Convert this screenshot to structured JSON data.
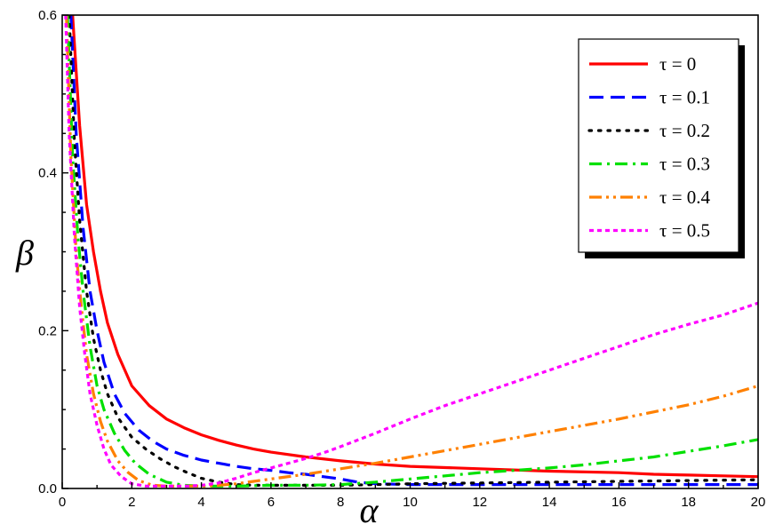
{
  "chart_data": {
    "type": "line",
    "xlabel": "α",
    "ylabel": "β",
    "xlim": [
      0,
      20
    ],
    "ylim": [
      0,
      0.6
    ],
    "xticks": [
      "0",
      "2",
      "4",
      "6",
      "8",
      "10",
      "12",
      "14",
      "16",
      "18",
      "20"
    ],
    "yticks": [
      "0.0",
      "0.2",
      "0.4",
      "0.6"
    ],
    "legend_position": "top-right",
    "grid": false,
    "series": [
      {
        "name": "τ = 0",
        "color": "#ff0000",
        "style": "solid",
        "x": [
          0.3,
          0.5,
          0.7,
          0.9,
          1.1,
          1.3,
          1.6,
          2.0,
          2.5,
          3,
          3.5,
          4,
          4.5,
          5,
          5.5,
          6,
          7,
          8,
          9,
          10,
          12,
          14,
          16,
          17,
          18,
          19,
          20
        ],
        "y": [
          0.6,
          0.46,
          0.36,
          0.3,
          0.25,
          0.21,
          0.17,
          0.13,
          0.105,
          0.088,
          0.077,
          0.068,
          0.061,
          0.055,
          0.05,
          0.046,
          0.04,
          0.035,
          0.031,
          0.028,
          0.025,
          0.022,
          0.02,
          0.018,
          0.017,
          0.016,
          0.015
        ]
      },
      {
        "name": "τ = 0.1",
        "color": "#0000ff",
        "style": "dash",
        "x": [
          0.25,
          0.4,
          0.6,
          0.8,
          1.0,
          1.2,
          1.5,
          1.8,
          2.2,
          2.6,
          3.0,
          3.5,
          4,
          4.5,
          5,
          5.5,
          6,
          6.5,
          7,
          7.5,
          8,
          8.5,
          9,
          10,
          12,
          14,
          16,
          18,
          20
        ],
        "y": [
          0.6,
          0.45,
          0.33,
          0.25,
          0.2,
          0.16,
          0.12,
          0.095,
          0.074,
          0.06,
          0.05,
          0.042,
          0.036,
          0.032,
          0.028,
          0.025,
          0.023,
          0.02,
          0.018,
          0.015,
          0.012,
          0.008,
          0.006,
          0.005,
          0.005,
          0.005,
          0.005,
          0.005,
          0.005
        ]
      },
      {
        "name": "τ = 0.2",
        "color": "#000000",
        "style": "dot",
        "x": [
          0.2,
          0.35,
          0.5,
          0.7,
          0.9,
          1.1,
          1.3,
          1.6,
          2.0,
          2.4,
          2.8,
          3.2,
          3.6,
          4,
          4.5,
          5,
          5.5,
          6,
          7,
          8,
          9,
          10,
          12,
          14,
          16,
          18,
          20
        ],
        "y": [
          0.6,
          0.44,
          0.34,
          0.25,
          0.19,
          0.15,
          0.12,
          0.09,
          0.065,
          0.05,
          0.038,
          0.028,
          0.02,
          0.013,
          0.008,
          0.005,
          0.004,
          0.004,
          0.004,
          0.004,
          0.005,
          0.006,
          0.007,
          0.008,
          0.009,
          0.01,
          0.011
        ]
      },
      {
        "name": "τ = 0.3",
        "color": "#00e000",
        "style": "dashdot",
        "x": [
          0.15,
          0.3,
          0.45,
          0.6,
          0.8,
          1.0,
          1.2,
          1.5,
          1.8,
          2.1,
          2.5,
          3.0,
          3.5,
          4,
          4.5,
          5,
          6,
          7,
          8,
          9,
          10,
          11,
          12,
          13,
          14,
          15,
          16,
          17,
          18,
          19,
          20
        ],
        "y": [
          0.6,
          0.42,
          0.32,
          0.25,
          0.18,
          0.13,
          0.1,
          0.07,
          0.048,
          0.032,
          0.018,
          0.008,
          0.004,
          0.003,
          0.003,
          0.003,
          0.004,
          0.004,
          0.005,
          0.008,
          0.012,
          0.016,
          0.02,
          0.023,
          0.026,
          0.03,
          0.035,
          0.04,
          0.047,
          0.054,
          0.062
        ]
      },
      {
        "name": "τ = 0.4",
        "color": "#ff8000",
        "style": "dashdotdot",
        "x": [
          0.12,
          0.25,
          0.4,
          0.55,
          0.7,
          0.9,
          1.1,
          1.3,
          1.6,
          1.9,
          2.2,
          2.6,
          3.0,
          3.5,
          4,
          4.5,
          5,
          5.5,
          6,
          7,
          8,
          9,
          10,
          11,
          12,
          13,
          14,
          15,
          16,
          17,
          18,
          19,
          20
        ],
        "y": [
          0.6,
          0.42,
          0.3,
          0.23,
          0.17,
          0.12,
          0.085,
          0.06,
          0.035,
          0.02,
          0.01,
          0.004,
          0.003,
          0.003,
          0.003,
          0.004,
          0.006,
          0.009,
          0.012,
          0.018,
          0.025,
          0.032,
          0.04,
          0.048,
          0.056,
          0.064,
          0.072,
          0.08,
          0.088,
          0.097,
          0.106,
          0.117,
          0.13
        ]
      },
      {
        "name": "τ = 0.5",
        "color": "#ff00ff",
        "style": "shortdash",
        "x": [
          0.1,
          0.2,
          0.35,
          0.5,
          0.65,
          0.8,
          1.0,
          1.2,
          1.4,
          1.7,
          2.0,
          2.4,
          2.8,
          3.2,
          3.6,
          4,
          4.5,
          5,
          5.5,
          6,
          6.5,
          7,
          7.5,
          8,
          9,
          10,
          11,
          12,
          13,
          14,
          15,
          16,
          17,
          18,
          19,
          20
        ],
        "y": [
          0.6,
          0.45,
          0.32,
          0.23,
          0.17,
          0.12,
          0.08,
          0.05,
          0.03,
          0.015,
          0.006,
          0.003,
          0.003,
          0.003,
          0.003,
          0.004,
          0.007,
          0.013,
          0.02,
          0.026,
          0.032,
          0.038,
          0.045,
          0.053,
          0.07,
          0.088,
          0.105,
          0.12,
          0.135,
          0.15,
          0.165,
          0.18,
          0.195,
          0.208,
          0.22,
          0.235
        ]
      }
    ]
  }
}
